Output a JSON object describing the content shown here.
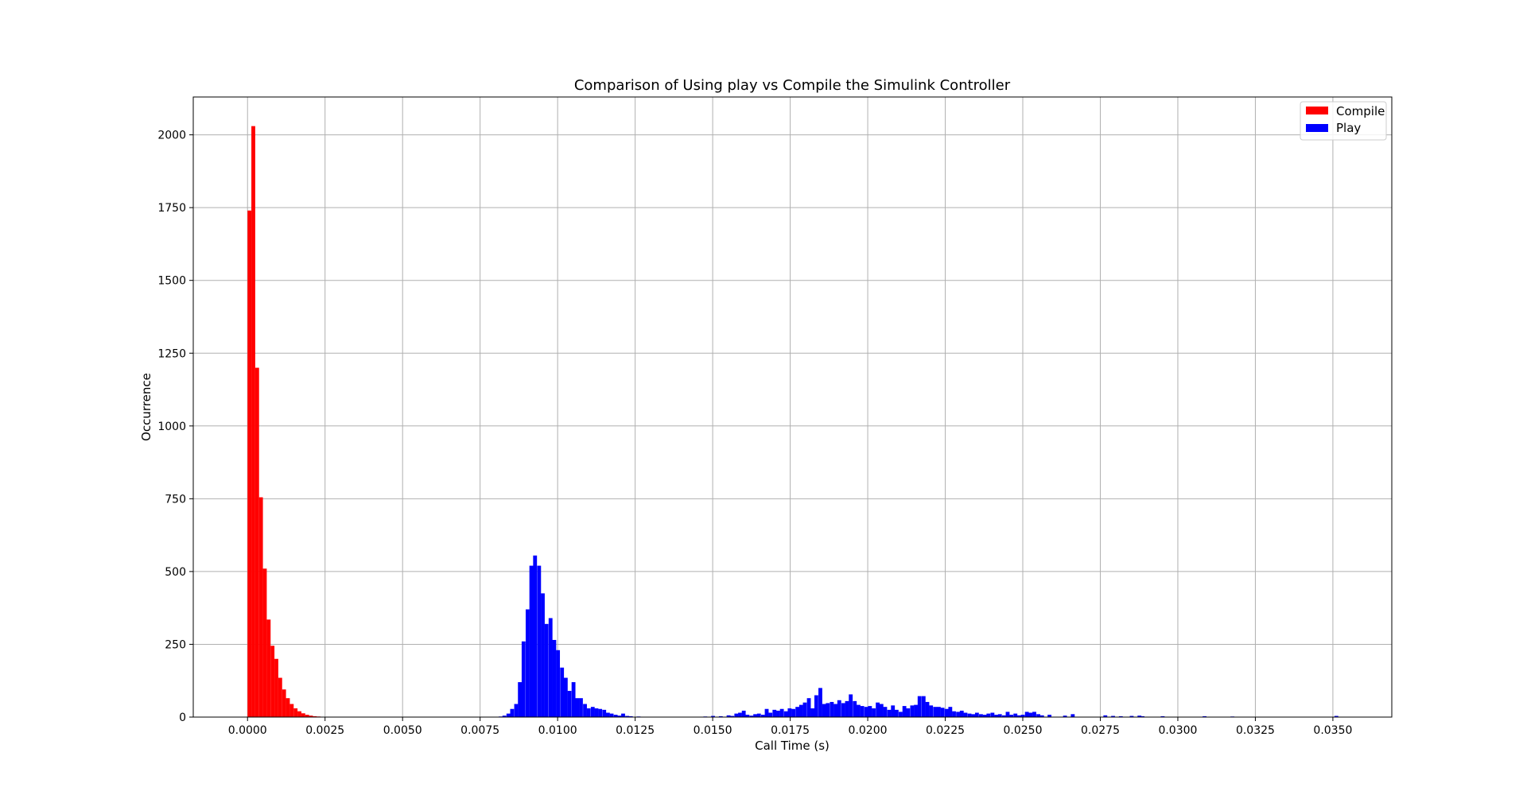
{
  "chart_data": {
    "type": "bar",
    "chart_kind": "histogram",
    "title": "Comparison of Using play vs Compile the Simulink Controller",
    "xlabel": "Call Time (s)",
    "ylabel": "Occurrence",
    "xlim": [
      -0.00175,
      0.0369
    ],
    "ylim": [
      0,
      2130
    ],
    "xticks": [
      "0.0000",
      "0.0025",
      "0.0050",
      "0.0075",
      "0.0100",
      "0.0125",
      "0.0150",
      "0.0175",
      "0.0200",
      "0.0225",
      "0.0250",
      "0.0275",
      "0.0300",
      "0.0325",
      "0.0350"
    ],
    "xtick_values": [
      0.0,
      0.0025,
      0.005,
      0.0075,
      0.01,
      0.0125,
      0.015,
      0.0175,
      0.02,
      0.0225,
      0.025,
      0.0275,
      0.03,
      0.0325,
      0.035
    ],
    "yticks": [
      "0",
      "250",
      "500",
      "750",
      "1000",
      "1250",
      "1500",
      "1750",
      "2000"
    ],
    "ytick_values": [
      0,
      250,
      500,
      750,
      1000,
      1250,
      1500,
      1750,
      2000
    ],
    "grid": true,
    "legend_position": "top-right",
    "series": [
      {
        "name": "Compile",
        "color": "#ff0000",
        "bin_width": 0.000124,
        "bin_start": 0.0,
        "values": [
          1740,
          2030,
          1200,
          755,
          510,
          335,
          245,
          200,
          135,
          95,
          65,
          45,
          30,
          20,
          13,
          8,
          5,
          3,
          2
        ]
      },
      {
        "name": "Play",
        "color": "#0000ff",
        "bin_width": 0.000124,
        "bins": [
          [
            0.0081,
            2
          ],
          [
            0.00822,
            5
          ],
          [
            0.00835,
            12
          ],
          [
            0.00847,
            28
          ],
          [
            0.0086,
            45
          ],
          [
            0.00872,
            120
          ],
          [
            0.00884,
            260
          ],
          [
            0.00897,
            370
          ],
          [
            0.00909,
            520
          ],
          [
            0.00921,
            555
          ],
          [
            0.00934,
            520
          ],
          [
            0.00946,
            425
          ],
          [
            0.00958,
            320
          ],
          [
            0.00971,
            340
          ],
          [
            0.00983,
            265
          ],
          [
            0.00995,
            230
          ],
          [
            0.01008,
            170
          ],
          [
            0.0102,
            135
          ],
          [
            0.01032,
            90
          ],
          [
            0.01045,
            120
          ],
          [
            0.01057,
            65
          ],
          [
            0.01069,
            65
          ],
          [
            0.01082,
            45
          ],
          [
            0.01094,
            30
          ],
          [
            0.01107,
            35
          ],
          [
            0.01119,
            30
          ],
          [
            0.01131,
            28
          ],
          [
            0.01144,
            25
          ],
          [
            0.01156,
            15
          ],
          [
            0.01168,
            12
          ],
          [
            0.01181,
            8
          ],
          [
            0.01193,
            5
          ],
          [
            0.01205,
            12
          ],
          [
            0.01218,
            4
          ],
          [
            0.0123,
            3
          ],
          [
            0.01255,
            2
          ],
          [
            0.0147,
            2
          ],
          [
            0.01495,
            4
          ],
          [
            0.0152,
            3
          ],
          [
            0.01545,
            6
          ],
          [
            0.01557,
            4
          ],
          [
            0.0157,
            12
          ],
          [
            0.01582,
            15
          ],
          [
            0.01594,
            22
          ],
          [
            0.01606,
            8
          ],
          [
            0.01619,
            5
          ],
          [
            0.01631,
            10
          ],
          [
            0.01643,
            12
          ],
          [
            0.01656,
            8
          ],
          [
            0.01668,
            28
          ],
          [
            0.0168,
            15
          ],
          [
            0.01693,
            25
          ],
          [
            0.01705,
            22
          ],
          [
            0.01717,
            28
          ],
          [
            0.0173,
            20
          ],
          [
            0.01742,
            30
          ],
          [
            0.01754,
            28
          ],
          [
            0.01767,
            35
          ],
          [
            0.01779,
            42
          ],
          [
            0.01791,
            50
          ],
          [
            0.01804,
            65
          ],
          [
            0.01816,
            30
          ],
          [
            0.01828,
            75
          ],
          [
            0.01841,
            100
          ],
          [
            0.01853,
            45
          ],
          [
            0.01865,
            48
          ],
          [
            0.01878,
            52
          ],
          [
            0.0189,
            45
          ],
          [
            0.01902,
            58
          ],
          [
            0.01915,
            48
          ],
          [
            0.01927,
            55
          ],
          [
            0.01939,
            78
          ],
          [
            0.01952,
            55
          ],
          [
            0.01964,
            42
          ],
          [
            0.01976,
            38
          ],
          [
            0.01989,
            35
          ],
          [
            0.02001,
            38
          ],
          [
            0.02013,
            30
          ],
          [
            0.02026,
            50
          ],
          [
            0.02038,
            45
          ],
          [
            0.0205,
            35
          ],
          [
            0.02063,
            25
          ],
          [
            0.02075,
            40
          ],
          [
            0.02087,
            25
          ],
          [
            0.021,
            18
          ],
          [
            0.02112,
            38
          ],
          [
            0.02124,
            30
          ],
          [
            0.02137,
            40
          ],
          [
            0.02149,
            42
          ],
          [
            0.02161,
            72
          ],
          [
            0.02174,
            72
          ],
          [
            0.02186,
            52
          ],
          [
            0.02198,
            40
          ],
          [
            0.02211,
            35
          ],
          [
            0.02223,
            35
          ],
          [
            0.02235,
            32
          ],
          [
            0.02248,
            28
          ],
          [
            0.0226,
            35
          ],
          [
            0.02272,
            20
          ],
          [
            0.02285,
            18
          ],
          [
            0.02297,
            22
          ],
          [
            0.02309,
            15
          ],
          [
            0.02322,
            12
          ],
          [
            0.02334,
            10
          ],
          [
            0.02346,
            15
          ],
          [
            0.02359,
            10
          ],
          [
            0.02371,
            8
          ],
          [
            0.02383,
            12
          ],
          [
            0.02396,
            15
          ],
          [
            0.02408,
            8
          ],
          [
            0.0242,
            10
          ],
          [
            0.02433,
            6
          ],
          [
            0.02445,
            18
          ],
          [
            0.02457,
            8
          ],
          [
            0.0247,
            12
          ],
          [
            0.02482,
            6
          ],
          [
            0.02494,
            8
          ],
          [
            0.02507,
            18
          ],
          [
            0.02519,
            15
          ],
          [
            0.02531,
            18
          ],
          [
            0.02544,
            10
          ],
          [
            0.02556,
            6
          ],
          [
            0.0258,
            8
          ],
          [
            0.0263,
            5
          ],
          [
            0.02655,
            10
          ],
          [
            0.0276,
            6
          ],
          [
            0.02785,
            4
          ],
          [
            0.0281,
            3
          ],
          [
            0.02845,
            4
          ],
          [
            0.0287,
            5
          ],
          [
            0.0288,
            3
          ],
          [
            0.02945,
            3
          ],
          [
            0.0308,
            3
          ],
          [
            0.0317,
            2
          ],
          [
            0.03505,
            4
          ]
        ]
      }
    ]
  }
}
